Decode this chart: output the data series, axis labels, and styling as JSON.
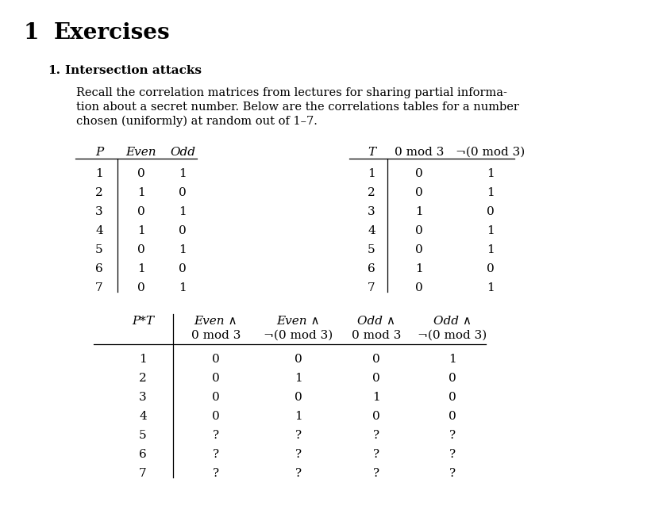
{
  "title_num": "1",
  "title_text": "Exercises",
  "subtitle": "1.  Intersection attacks",
  "body_lines": [
    "Recall the correlation matrices from lectures for sharing partial informa-",
    "tion about a secret number. Below are the correlations tables for a number",
    "chosen (uniformly) at random out of 1–7."
  ],
  "table1": {
    "col_headers": [
      "P",
      "Even",
      "Odd"
    ],
    "rows": [
      [
        "1",
        "0",
        "1"
      ],
      [
        "2",
        "1",
        "0"
      ],
      [
        "3",
        "0",
        "1"
      ],
      [
        "4",
        "1",
        "0"
      ],
      [
        "5",
        "0",
        "1"
      ],
      [
        "6",
        "1",
        "0"
      ],
      [
        "7",
        "0",
        "1"
      ]
    ]
  },
  "table2": {
    "col_headers": [
      "T",
      "0 mod 3",
      "¬(0 mod 3)"
    ],
    "rows": [
      [
        "1",
        "0",
        "1"
      ],
      [
        "2",
        "0",
        "1"
      ],
      [
        "3",
        "1",
        "0"
      ],
      [
        "4",
        "0",
        "1"
      ],
      [
        "5",
        "0",
        "1"
      ],
      [
        "6",
        "1",
        "0"
      ],
      [
        "7",
        "0",
        "1"
      ]
    ]
  },
  "table3": {
    "col_headers_line1": [
      "P*T",
      "Even ∧",
      "Even ∧",
      "Odd ∧",
      "Odd ∧"
    ],
    "col_headers_line2": [
      "",
      "0 mod 3",
      "¬(0 mod 3)",
      "0 mod 3",
      "¬(0 mod 3)"
    ],
    "rows": [
      [
        "1",
        "0",
        "0",
        "0",
        "1"
      ],
      [
        "2",
        "0",
        "1",
        "0",
        "0"
      ],
      [
        "3",
        "0",
        "0",
        "1",
        "0"
      ],
      [
        "4",
        "0",
        "1",
        "0",
        "0"
      ],
      [
        "5",
        "?",
        "?",
        "?",
        "?"
      ],
      [
        "6",
        "?",
        "?",
        "?",
        "?"
      ],
      [
        "7",
        "?",
        "?",
        "?",
        "?"
      ]
    ]
  },
  "bg_color": "#ffffff",
  "text_color": "#000000"
}
